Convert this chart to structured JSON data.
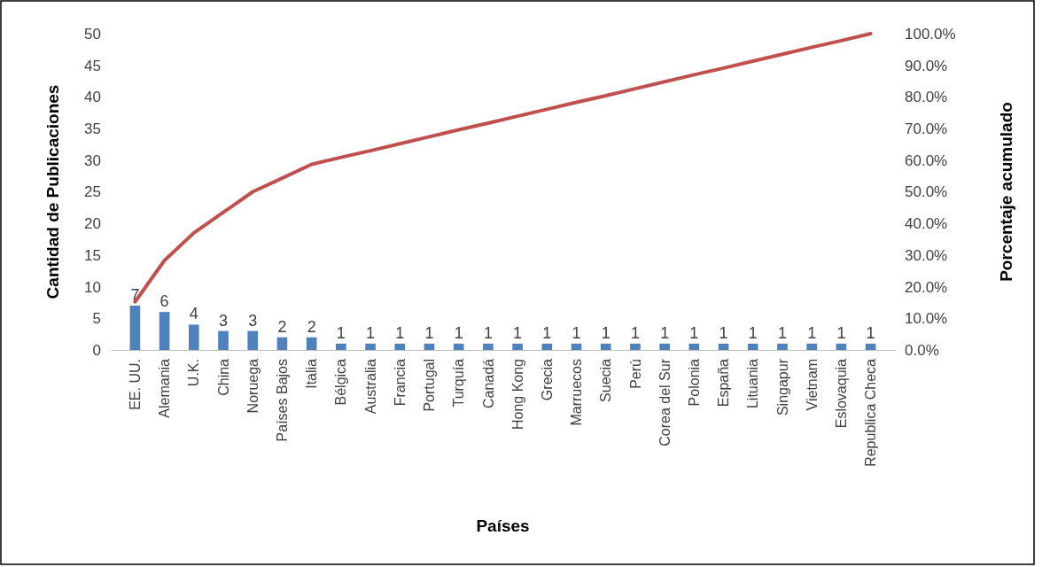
{
  "chart_data": {
    "type": "bar",
    "xlabel": "Países",
    "ylabel": "Cantidad de Publicaciones",
    "y2label": "Porcentaje acumulado",
    "categories": [
      "EE. UU.",
      "Alemania",
      "U.K.",
      "China",
      "Noruega",
      "Países Bajos",
      "Italia",
      "Bélgica",
      "Australia",
      "Francia",
      "Portugal",
      "Turquía",
      "Canadá",
      "Hong Kong",
      "Grecia",
      "Marruecos",
      "Suecia",
      "Perú",
      "Corea del Sur",
      "Polonia",
      "España",
      "Lituania",
      "Singapur",
      "Vietnam",
      "Eslovaquia",
      "Republica Checa"
    ],
    "series": [
      {
        "color": "#4f81bd",
        "values": [
          7,
          6,
          4,
          3,
          3,
          2,
          2,
          1,
          1,
          1,
          1,
          1,
          1,
          1,
          1,
          1,
          1,
          1,
          1,
          1,
          1,
          1,
          1,
          1,
          1,
          1
        ],
        "value_labels": [
          "7",
          "6",
          "4",
          "3",
          "3",
          "2",
          "2",
          "1",
          "1",
          "1",
          "1",
          "1",
          "1",
          "1",
          "1",
          "1",
          "1",
          "1",
          "1",
          "1",
          "1",
          "1",
          "1",
          "1",
          "1",
          "1"
        ]
      },
      {
        "type": "line",
        "axis": "y2",
        "color": "#c0504d",
        "values": [
          15.2,
          28.3,
          37.0,
          43.5,
          50.0,
          54.3,
          58.7,
          60.9,
          63.0,
          65.2,
          67.4,
          69.6,
          71.7,
          73.9,
          76.1,
          78.3,
          80.4,
          82.6,
          84.8,
          87.0,
          89.1,
          91.3,
          93.5,
          95.7,
          97.8,
          100.0
        ]
      }
    ],
    "ylim": [
      0,
      50
    ],
    "yticks": [
      0,
      5,
      10,
      15,
      20,
      25,
      30,
      35,
      40,
      45,
      50
    ],
    "y2lim": [
      0,
      100
    ],
    "y2ticks": [
      {
        "value": 0,
        "label": "0.0%"
      },
      {
        "value": 10,
        "label": "10.0%"
      },
      {
        "value": 20,
        "label": "20.0%"
      },
      {
        "value": 30,
        "label": "30.0%"
      },
      {
        "value": 40,
        "label": "40.0%"
      },
      {
        "value": 50,
        "label": "50.0%"
      },
      {
        "value": 60,
        "label": "60.0%"
      },
      {
        "value": 70,
        "label": "70.0%"
      },
      {
        "value": 80,
        "label": "80.0%"
      },
      {
        "value": 90,
        "label": "90.0%"
      },
      {
        "value": 100,
        "label": "100.0%"
      }
    ],
    "grid": false,
    "marker": "none",
    "line_style": "solid"
  }
}
